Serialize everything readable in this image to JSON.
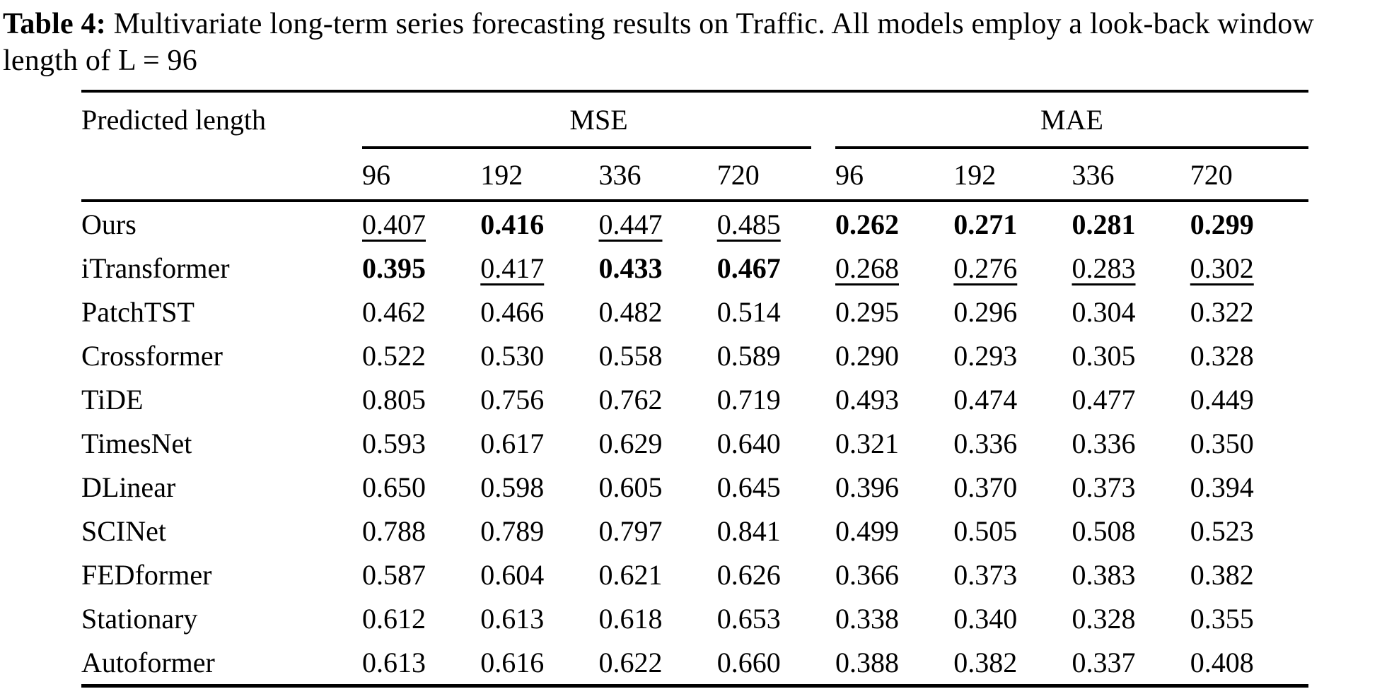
{
  "caption": {
    "label": "Table 4:",
    "text": " Multivariate long-term series forecasting results on Traffic. All models employ a look-back window length of L = 96"
  },
  "table": {
    "row_header": "Predicted length",
    "groups": [
      {
        "label": "MSE"
      },
      {
        "label": "MAE"
      }
    ],
    "sub_headers": [
      "96",
      "192",
      "336",
      "720",
      "96",
      "192",
      "336",
      "720"
    ],
    "legend": {
      "best_style": "bold",
      "second_best_style": "underline"
    },
    "rows": [
      {
        "model": "Ours",
        "cells": [
          {
            "v": "0.407",
            "s": "second"
          },
          {
            "v": "0.416",
            "s": "best"
          },
          {
            "v": "0.447",
            "s": "second"
          },
          {
            "v": "0.485",
            "s": "second"
          },
          {
            "v": "0.262",
            "s": "best"
          },
          {
            "v": "0.271",
            "s": "best"
          },
          {
            "v": "0.281",
            "s": "best"
          },
          {
            "v": "0.299",
            "s": "best"
          }
        ]
      },
      {
        "model": "iTransformer",
        "cells": [
          {
            "v": "0.395",
            "s": "best"
          },
          {
            "v": "0.417",
            "s": "second"
          },
          {
            "v": "0.433",
            "s": "best"
          },
          {
            "v": "0.467",
            "s": "best"
          },
          {
            "v": "0.268",
            "s": "second"
          },
          {
            "v": "0.276",
            "s": "second"
          },
          {
            "v": "0.283",
            "s": "second"
          },
          {
            "v": "0.302",
            "s": "second"
          }
        ]
      },
      {
        "model": "PatchTST",
        "cells": [
          {
            "v": "0.462"
          },
          {
            "v": "0.466"
          },
          {
            "v": "0.482"
          },
          {
            "v": "0.514"
          },
          {
            "v": "0.295"
          },
          {
            "v": "0.296"
          },
          {
            "v": "0.304"
          },
          {
            "v": "0.322"
          }
        ]
      },
      {
        "model": "Crossformer",
        "cells": [
          {
            "v": "0.522"
          },
          {
            "v": "0.530"
          },
          {
            "v": "0.558"
          },
          {
            "v": "0.589"
          },
          {
            "v": "0.290"
          },
          {
            "v": "0.293"
          },
          {
            "v": "0.305"
          },
          {
            "v": "0.328"
          }
        ]
      },
      {
        "model": "TiDE",
        "cells": [
          {
            "v": "0.805"
          },
          {
            "v": "0.756"
          },
          {
            "v": "0.762"
          },
          {
            "v": "0.719"
          },
          {
            "v": "0.493"
          },
          {
            "v": "0.474"
          },
          {
            "v": "0.477"
          },
          {
            "v": "0.449"
          }
        ]
      },
      {
        "model": "TimesNet",
        "cells": [
          {
            "v": "0.593"
          },
          {
            "v": "0.617"
          },
          {
            "v": "0.629"
          },
          {
            "v": "0.640"
          },
          {
            "v": "0.321"
          },
          {
            "v": "0.336"
          },
          {
            "v": "0.336"
          },
          {
            "v": "0.350"
          }
        ]
      },
      {
        "model": "DLinear",
        "cells": [
          {
            "v": "0.650"
          },
          {
            "v": "0.598"
          },
          {
            "v": "0.605"
          },
          {
            "v": "0.645"
          },
          {
            "v": "0.396"
          },
          {
            "v": "0.370"
          },
          {
            "v": "0.373"
          },
          {
            "v": "0.394"
          }
        ]
      },
      {
        "model": "SCINet",
        "cells": [
          {
            "v": "0.788"
          },
          {
            "v": "0.789"
          },
          {
            "v": "0.797"
          },
          {
            "v": "0.841"
          },
          {
            "v": "0.499"
          },
          {
            "v": "0.505"
          },
          {
            "v": "0.508"
          },
          {
            "v": "0.523"
          }
        ]
      },
      {
        "model": "FEDformer",
        "cells": [
          {
            "v": "0.587"
          },
          {
            "v": "0.604"
          },
          {
            "v": "0.621"
          },
          {
            "v": "0.626"
          },
          {
            "v": "0.366"
          },
          {
            "v": "0.373"
          },
          {
            "v": "0.383"
          },
          {
            "v": "0.382"
          }
        ]
      },
      {
        "model": "Stationary",
        "cells": [
          {
            "v": "0.612"
          },
          {
            "v": "0.613"
          },
          {
            "v": "0.618"
          },
          {
            "v": "0.653"
          },
          {
            "v": "0.338"
          },
          {
            "v": "0.340"
          },
          {
            "v": "0.328"
          },
          {
            "v": "0.355"
          }
        ]
      },
      {
        "model": "Autoformer",
        "cells": [
          {
            "v": "0.613"
          },
          {
            "v": "0.616"
          },
          {
            "v": "0.622"
          },
          {
            "v": "0.660"
          },
          {
            "v": "0.388"
          },
          {
            "v": "0.382"
          },
          {
            "v": "0.337"
          },
          {
            "v": "0.408"
          }
        ]
      }
    ]
  }
}
